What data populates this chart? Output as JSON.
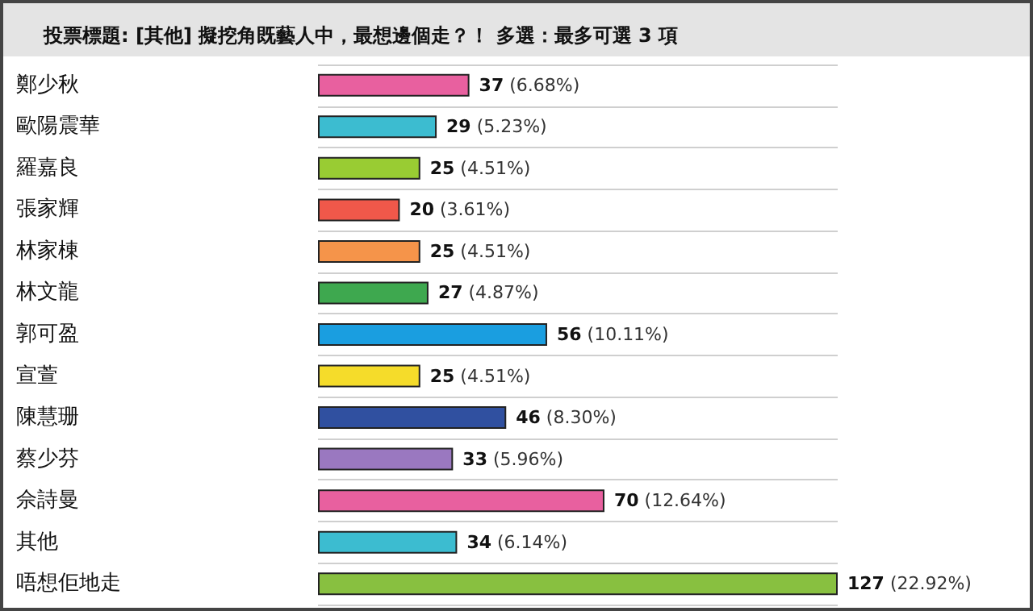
{
  "chart_data": {
    "type": "bar",
    "orientation": "horizontal",
    "title": "投票標題: [其他] 擬挖角既藝人中，最想邊個走？！ 多選：最多可選 3 項",
    "categories": [
      "鄭少秋",
      "歐陽震華",
      "羅嘉良",
      "張家輝",
      "林家棟",
      "林文龍",
      "郭可盈",
      "宣萱",
      "陳慧珊",
      "蔡少芬",
      "佘詩曼",
      "其他",
      "唔想佢地走"
    ],
    "values": [
      37,
      29,
      25,
      20,
      25,
      27,
      56,
      25,
      46,
      33,
      70,
      34,
      127
    ],
    "colors": [
      "#e8609f",
      "#3cbcd0",
      "#99cc33",
      "#f0584a",
      "#f5944a",
      "#3ea84f",
      "#1a9ee0",
      "#f5dc2a",
      "#3050a0",
      "#9a78c0",
      "#e8609f",
      "#3cbcd0",
      "#88c040"
    ],
    "value_labels": [
      "37 (6.68%)",
      "29 (5.23%)",
      "25 (4.51%)",
      "20 (3.61%)",
      "25 (4.51%)",
      "27 (4.87%)",
      "56 (10.11%)",
      "25 (4.51%)",
      "46 (8.30%)",
      "33 (5.96%)",
      "70 (12.64%)",
      "34 (6.14%)",
      "127 (22.92%)"
    ],
    "grid": "y"
  }
}
